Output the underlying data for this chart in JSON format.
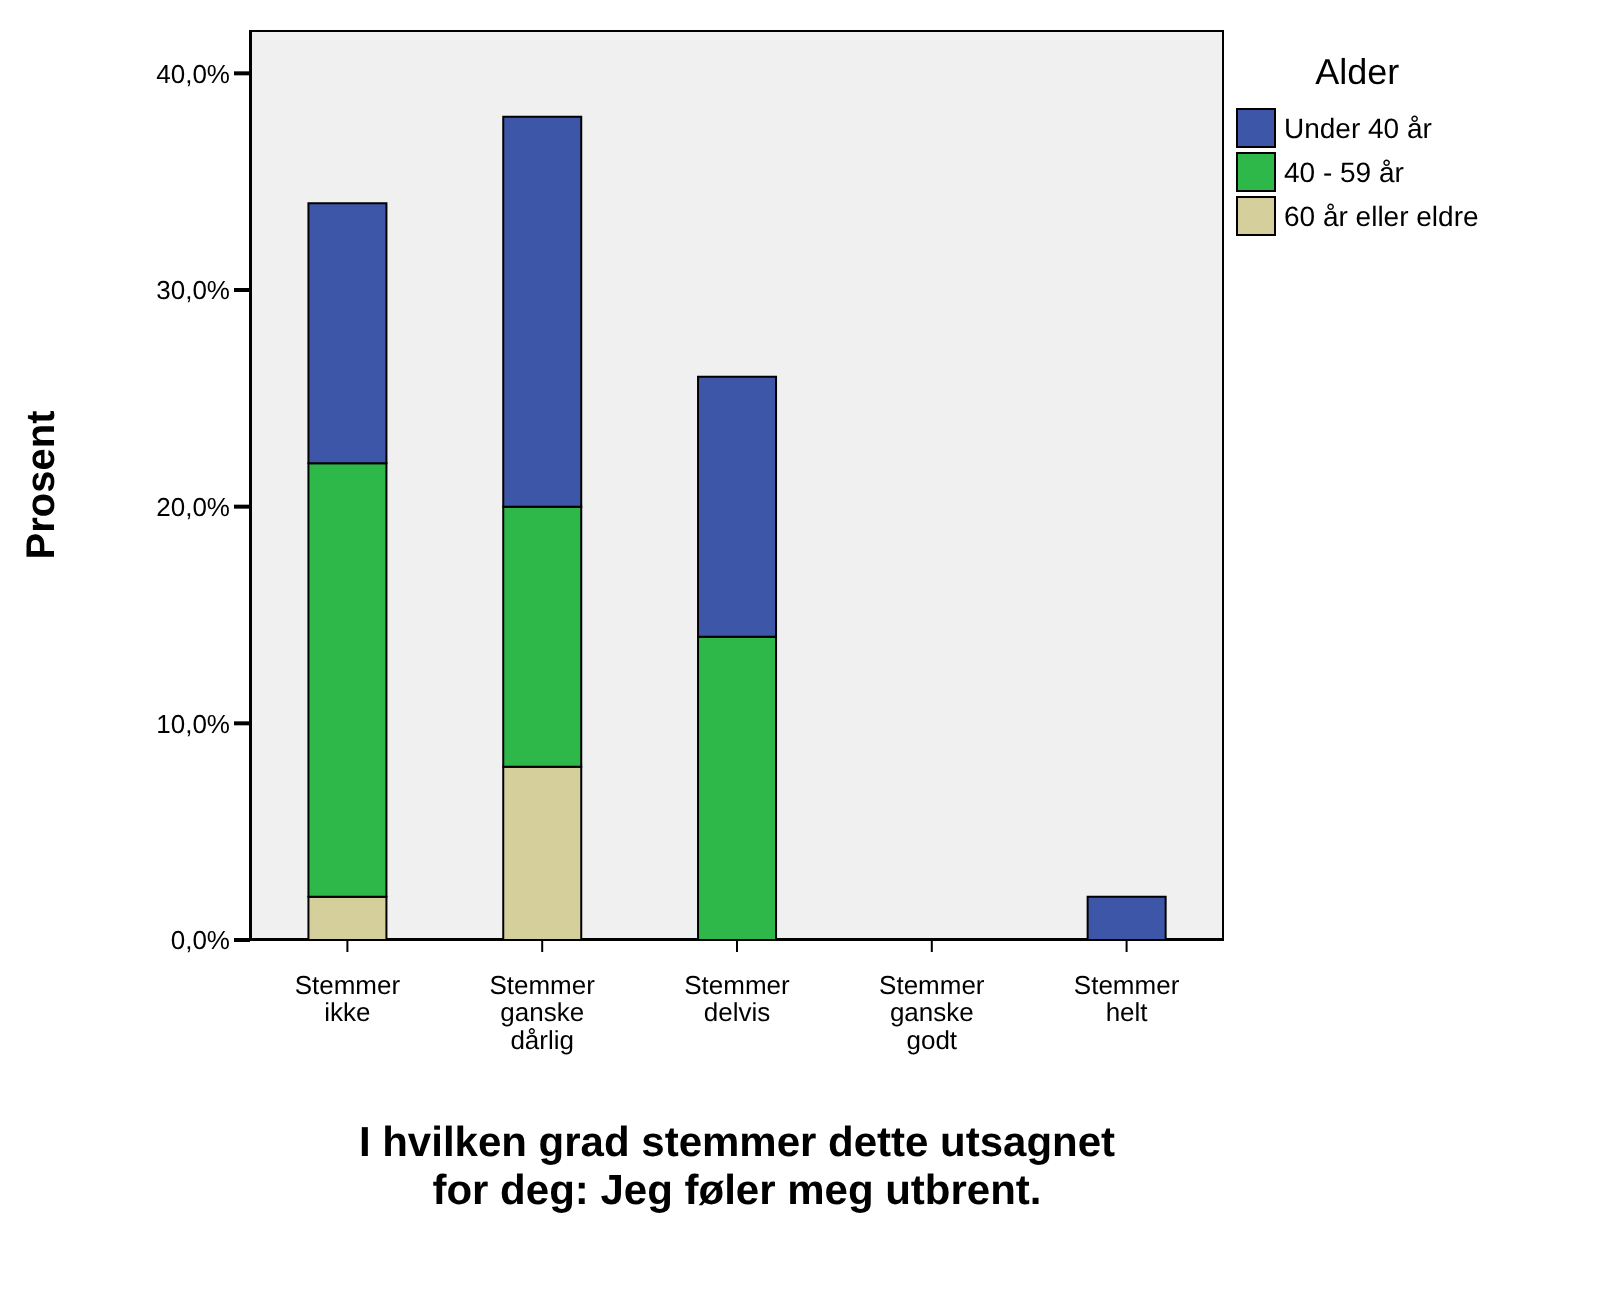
{
  "chart_data": {
    "type": "bar",
    "stacked": true,
    "xlabel": "I hvilken grad stemmer dette utsagnet for deg: Jeg føler meg utbrent.",
    "ylabel": "Prosent",
    "legend_title": "Alder",
    "legend": "right",
    "grid": false,
    "categories": [
      "Stemmer ikke",
      "Stemmer ganske dårlig",
      "Stemmer delvis",
      "Stemmer ganske godt",
      "Stemmer helt"
    ],
    "series": [
      {
        "name": "60 år eller eldre",
        "color": "#d4cf9b",
        "values": [
          2,
          8,
          0,
          0,
          0
        ]
      },
      {
        "name": "40 - 59 år",
        "color": "#2eb84a",
        "values": [
          20,
          12,
          14,
          0,
          0
        ]
      },
      {
        "name": "Under 40 år",
        "color": "#3e56a8",
        "values": [
          12,
          18,
          12,
          0,
          2
        ]
      }
    ],
    "ylim": [
      0,
      42
    ],
    "yticks": [
      {
        "value": 0,
        "label": "0,0%"
      },
      {
        "value": 10,
        "label": "10,0%"
      },
      {
        "value": 20,
        "label": "20,0%"
      },
      {
        "value": 30,
        "label": "30,0%"
      },
      {
        "value": 40,
        "label": "40,0%"
      }
    ]
  }
}
